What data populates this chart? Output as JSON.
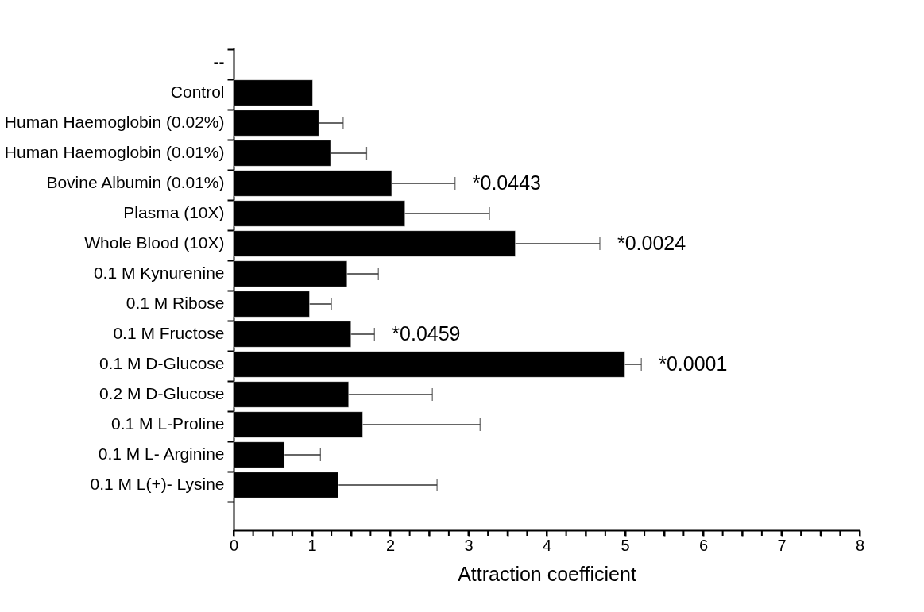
{
  "chart_data": {
    "type": "bar",
    "orientation": "horizontal",
    "xlabel": "Attraction coefficient",
    "categories": [
      "--",
      "Control",
      "Human Haemoglobin (0.02%)",
      "Human Haemoglobin (0.01%)",
      "Bovine Albumin (0.01%)",
      "Plasma (10X)",
      "Whole Blood (10X)",
      "0.1 M Kynurenine",
      "0.1 M Ribose",
      "0.1 M Fructose",
      "0.1 M D-Glucose",
      "0.2 M D-Glucose",
      "0.1 M L-Proline",
      "0.1 M L- Arginine",
      "0.1 M L(+)- Lysine",
      null
    ],
    "values": [
      null,
      1.01,
      1.09,
      1.24,
      2.02,
      2.19,
      3.6,
      1.45,
      0.97,
      1.5,
      5.0,
      1.47,
      1.65,
      0.65,
      1.34,
      null
    ],
    "errors": [
      null,
      null,
      0.31,
      0.46,
      0.81,
      1.08,
      1.08,
      0.4,
      0.28,
      0.3,
      0.21,
      1.07,
      1.5,
      0.46,
      1.26,
      null
    ],
    "annotations": [
      {
        "text": "*0.0443",
        "x": 2.83,
        "y": "Bovine Albumin (0.01%)"
      },
      {
        "text": "*0.0024",
        "x": 4.68,
        "y": "Whole Blood (10X)"
      },
      {
        "text": "*0.0459",
        "x": 1.8,
        "y": "0.1 M Fructose"
      },
      {
        "text": "*0.0001",
        "x": 5.21,
        "y": "0.1 M D-Glucose"
      }
    ],
    "color": "#000000",
    "xlim": [
      0,
      8
    ],
    "xticks": [
      0,
      {
        "value": 0.25,
        "label": null
      },
      {
        "value": 0.5,
        "label": null
      },
      {
        "value": 0.75,
        "label": null
      },
      1,
      {
        "value": 1.25,
        "label": null
      },
      {
        "value": 1.5,
        "label": null
      },
      {
        "value": 1.75,
        "label": null
      },
      2,
      {
        "value": 2.25,
        "label": null
      },
      {
        "value": 2.5,
        "label": null
      },
      {
        "value": 2.75,
        "label": null
      },
      3,
      {
        "value": 3.25,
        "label": null
      },
      {
        "value": 3.5,
        "label": null
      },
      {
        "value": 3.75,
        "label": null
      },
      4,
      {
        "value": 4.25,
        "label": null
      },
      {
        "value": 4.5,
        "label": null
      },
      {
        "value": 4.75,
        "label": null
      },
      5,
      {
        "value": 5.25,
        "label": null
      },
      {
        "value": 5.5,
        "label": null
      },
      {
        "value": 5.75,
        "label": null
      },
      6,
      {
        "value": 6.25,
        "label": null
      },
      {
        "value": 6.5,
        "label": null
      },
      {
        "value": 6.75,
        "label": null
      },
      7,
      {
        "value": 7.25,
        "label": null
      },
      {
        "value": 7.5,
        "label": null
      },
      {
        "value": 7.75,
        "label": null
      },
      8
    ],
    "grid": false
  }
}
